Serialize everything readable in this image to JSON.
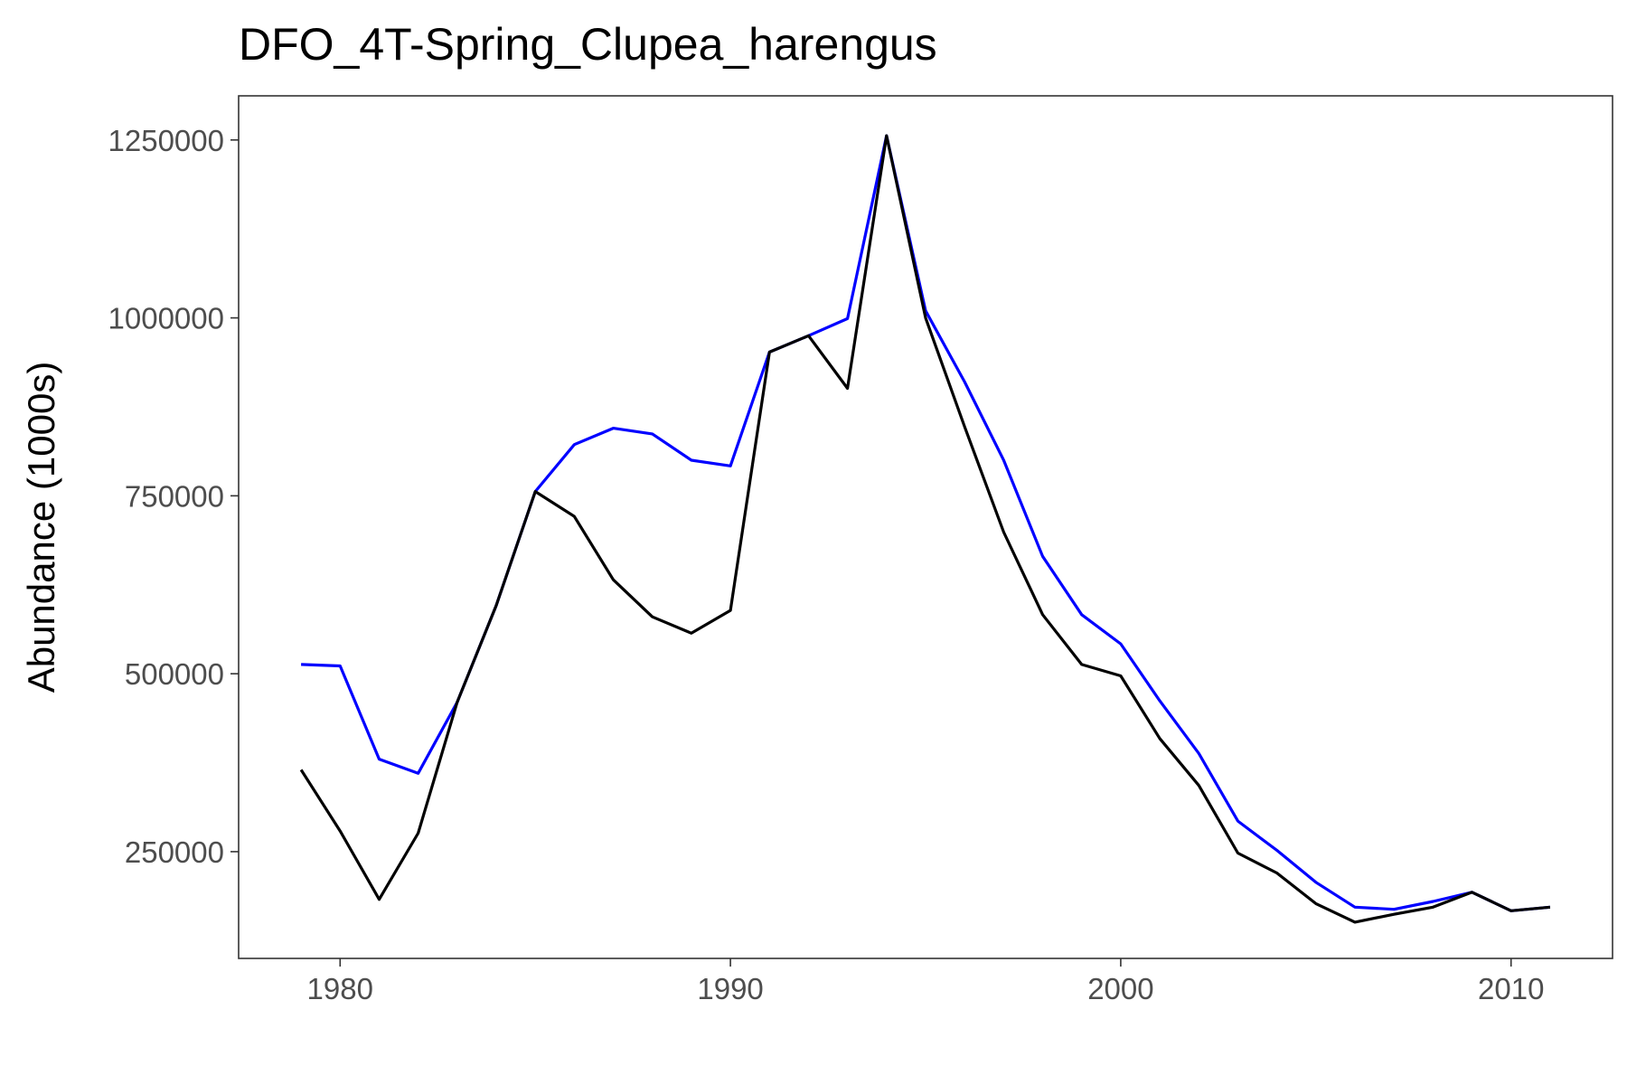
{
  "chart_data": {
    "type": "line",
    "title": "DFO_4T-Spring_Clupea_harengus",
    "xlabel": "",
    "ylabel": "Abundance (1000s)",
    "xlim": [
      1977.4,
      2012.6
    ],
    "ylim": [
      100000,
      1312000
    ],
    "x_ticks": [
      1980,
      1990,
      2000,
      2010
    ],
    "y_ticks": [
      250000,
      500000,
      750000,
      1000000,
      1250000
    ],
    "x_tick_labels": [
      "1980",
      "1990",
      "2000",
      "2010"
    ],
    "y_tick_labels": [
      "250000",
      "500000",
      "750000",
      "1000000",
      "1250000"
    ],
    "grid": false,
    "legend": "none",
    "x": [
      1979,
      1980,
      1981,
      1982,
      1983,
      1984,
      1985,
      1986,
      1987,
      1988,
      1989,
      1990,
      1991,
      1992,
      1993,
      1994,
      1995,
      1996,
      1997,
      1998,
      1999,
      2000,
      2001,
      2002,
      2003,
      2004,
      2005,
      2006,
      2007,
      2008,
      2009,
      2010,
      2011
    ],
    "series": [
      {
        "color": "#0000ff",
        "values": [
          513000,
          511000,
          380000,
          360000,
          460000,
          596000,
          756000,
          822000,
          845000,
          837000,
          800000,
          792000,
          952000,
          975000,
          999000,
          1256000,
          1010000,
          910000,
          800000,
          665000,
          583000,
          542000,
          462000,
          388000,
          293000,
          252000,
          207000,
          172000,
          169000,
          180000,
          193000,
          167000,
          172000
        ]
      },
      {
        "color": "#000000",
        "values": [
          365000,
          279000,
          183000,
          276000,
          460000,
          596000,
          756000,
          721000,
          632000,
          580000,
          557000,
          589000,
          952000,
          975000,
          901000,
          1256000,
          1000000,
          847000,
          699000,
          583000,
          513000,
          497000,
          409000,
          343000,
          248000,
          220000,
          177000,
          151000,
          162000,
          172000,
          193000,
          167000,
          172000
        ]
      }
    ]
  }
}
